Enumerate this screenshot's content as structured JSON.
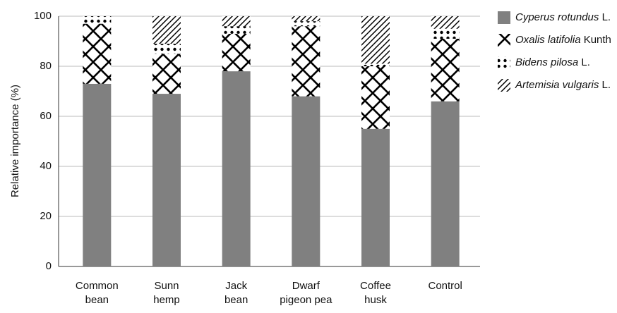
{
  "chart_data": {
    "type": "stacked_bar",
    "y_label": "Relative importance (%)",
    "categories": [
      "Common\nbean",
      "Sunn\nhemp",
      "Jack\nbean",
      "Dwarf\npigeon pea",
      "Coffee\nhusk",
      "Control"
    ],
    "series": [
      {
        "name": "Cyperus rotundus L.",
        "color": "#808080",
        "pattern": "solid",
        "values": [
          73,
          69,
          78,
          68,
          55,
          66
        ]
      },
      {
        "name": "Oxalis latifolia Kunth",
        "color": "#000000",
        "pattern": "crosshatch",
        "values": [
          24,
          16,
          15,
          28,
          25,
          25
        ]
      },
      {
        "name": "Bidens pilosa L.",
        "color": "#000000",
        "pattern": "dots",
        "values": [
          3,
          4,
          3,
          2,
          1,
          4
        ]
      },
      {
        "name": "Artemisia vulgaris L.",
        "color": "#000000",
        "pattern": "diagonal",
        "values": [
          0,
          11,
          4,
          2,
          19,
          5
        ]
      }
    ],
    "ylim": [
      0,
      100
    ],
    "yticks": [
      0,
      20,
      40,
      60,
      80,
      100
    ],
    "grid": true,
    "legend": "right"
  }
}
